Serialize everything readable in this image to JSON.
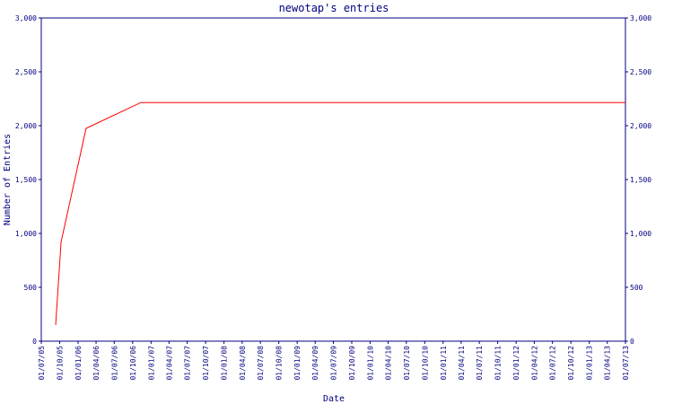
{
  "chart_data": {
    "type": "line",
    "title": "newotap's entries",
    "x_label": "Date",
    "y_label": "Number of Entries",
    "x": [
      "11/09/05",
      "08/10/05",
      "10/02/06",
      "11/11/06",
      "01/07/13"
    ],
    "values": [
      150,
      920,
      1975,
      2215,
      2215
    ],
    "color": "#ff0000",
    "xlim": [
      "01/07/05",
      "01/07/13"
    ],
    "xticks": [
      "01/07/05",
      "01/10/05",
      "01/01/06",
      "01/04/06",
      "01/07/06",
      "01/10/06",
      "01/01/07",
      "01/04/07",
      "01/07/07",
      "01/10/07",
      "01/01/08",
      "01/04/08",
      "01/07/08",
      "01/10/08",
      "01/01/09",
      "01/04/09",
      "01/07/09",
      "01/10/09",
      "01/01/10",
      "01/04/10",
      "01/07/10",
      "01/10/10",
      "01/01/11",
      "01/04/11",
      "01/07/11",
      "01/10/11",
      "01/01/12",
      "01/04/12",
      "01/07/12",
      "01/10/12",
      "01/01/13",
      "01/04/13",
      "01/07/13"
    ],
    "ylim": [
      0,
      3000
    ],
    "yticks": [
      0,
      500,
      {
        "value": 1000,
        "label": "1,000"
      },
      {
        "value": 1500,
        "label": "1,500"
      },
      {
        "value": 2000,
        "label": "2,000"
      },
      {
        "value": 2500,
        "label": "2,500"
      },
      {
        "value": 3000,
        "label": "3,000"
      }
    ],
    "grid": false
  }
}
